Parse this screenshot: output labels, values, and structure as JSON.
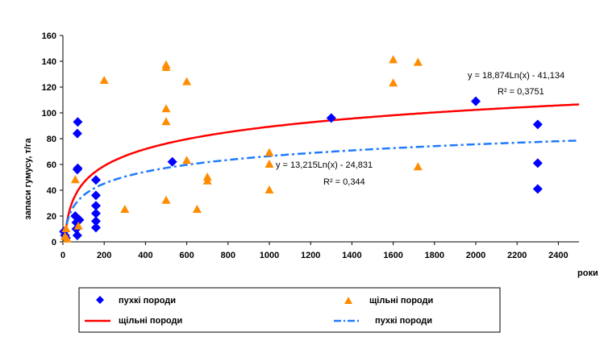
{
  "chart_data": {
    "type": "scatter",
    "title": "",
    "xlabel": "роки",
    "ylabel": "запаси гумусу, т/га",
    "xlim": [
      0,
      2500
    ],
    "ylim": [
      0,
      160
    ],
    "xticks": [
      0,
      200,
      400,
      600,
      800,
      1000,
      1200,
      1400,
      1600,
      1800,
      2000,
      2200,
      2400
    ],
    "yticks": [
      0,
      20,
      40,
      60,
      80,
      100,
      120,
      140,
      160
    ],
    "grid": false,
    "legend_position": "bottom",
    "series": [
      {
        "name": "пухкі породи",
        "kind": "scatter",
        "marker": "diamond",
        "color": "#0000ff",
        "points": [
          [
            5,
            8
          ],
          [
            10,
            5
          ],
          [
            15,
            3
          ],
          [
            60,
            20
          ],
          [
            65,
            15
          ],
          [
            70,
            56
          ],
          [
            72,
            57
          ],
          [
            70,
            84
          ],
          [
            72,
            93
          ],
          [
            65,
            10
          ],
          [
            70,
            5
          ],
          [
            80,
            17
          ],
          [
            160,
            48
          ],
          [
            160,
            36
          ],
          [
            160,
            28
          ],
          [
            160,
            22
          ],
          [
            160,
            16
          ],
          [
            160,
            11
          ],
          [
            530,
            62
          ],
          [
            1300,
            96
          ],
          [
            2000,
            109
          ],
          [
            2300,
            91
          ],
          [
            2300,
            61
          ],
          [
            2300,
            41
          ]
        ]
      },
      {
        "name": "щільні породи",
        "kind": "scatter",
        "marker": "triangle",
        "color": "#ff8c00",
        "points": [
          [
            10,
            4
          ],
          [
            15,
            10
          ],
          [
            20,
            2
          ],
          [
            60,
            48
          ],
          [
            75,
            12
          ],
          [
            200,
            125
          ],
          [
            300,
            25
          ],
          [
            500,
            137
          ],
          [
            500,
            135
          ],
          [
            500,
            103
          ],
          [
            500,
            93
          ],
          [
            500,
            32
          ],
          [
            600,
            124
          ],
          [
            600,
            63
          ],
          [
            650,
            25
          ],
          [
            700,
            50
          ],
          [
            700,
            47
          ],
          [
            1000,
            69
          ],
          [
            1000,
            60
          ],
          [
            1000,
            40
          ],
          [
            1600,
            141
          ],
          [
            1600,
            123
          ],
          [
            1720,
            139
          ],
          [
            1720,
            58
          ]
        ]
      },
      {
        "name": "щільні породи",
        "kind": "trend",
        "a": 18.874,
        "b": -41.134,
        "color": "#ff0000",
        "dash": "solid"
      },
      {
        "name": "пухкі породи",
        "kind": "trend",
        "a": 13.215,
        "b": -24.831,
        "color": "#1e7bff",
        "dash": "dashdot"
      }
    ],
    "annotations": [
      {
        "text": "y = 18,874Ln(x) - 41,134",
        "series": "щільні породи (trend)"
      },
      {
        "text": "R² = 0,3751",
        "series": "щільні породи (trend)"
      },
      {
        "text": "y = 13,215Ln(x) - 24,831",
        "series": "пухкі породи (trend)"
      },
      {
        "text": "R² = 0,344",
        "series": "пухкі породи (trend)"
      }
    ]
  }
}
